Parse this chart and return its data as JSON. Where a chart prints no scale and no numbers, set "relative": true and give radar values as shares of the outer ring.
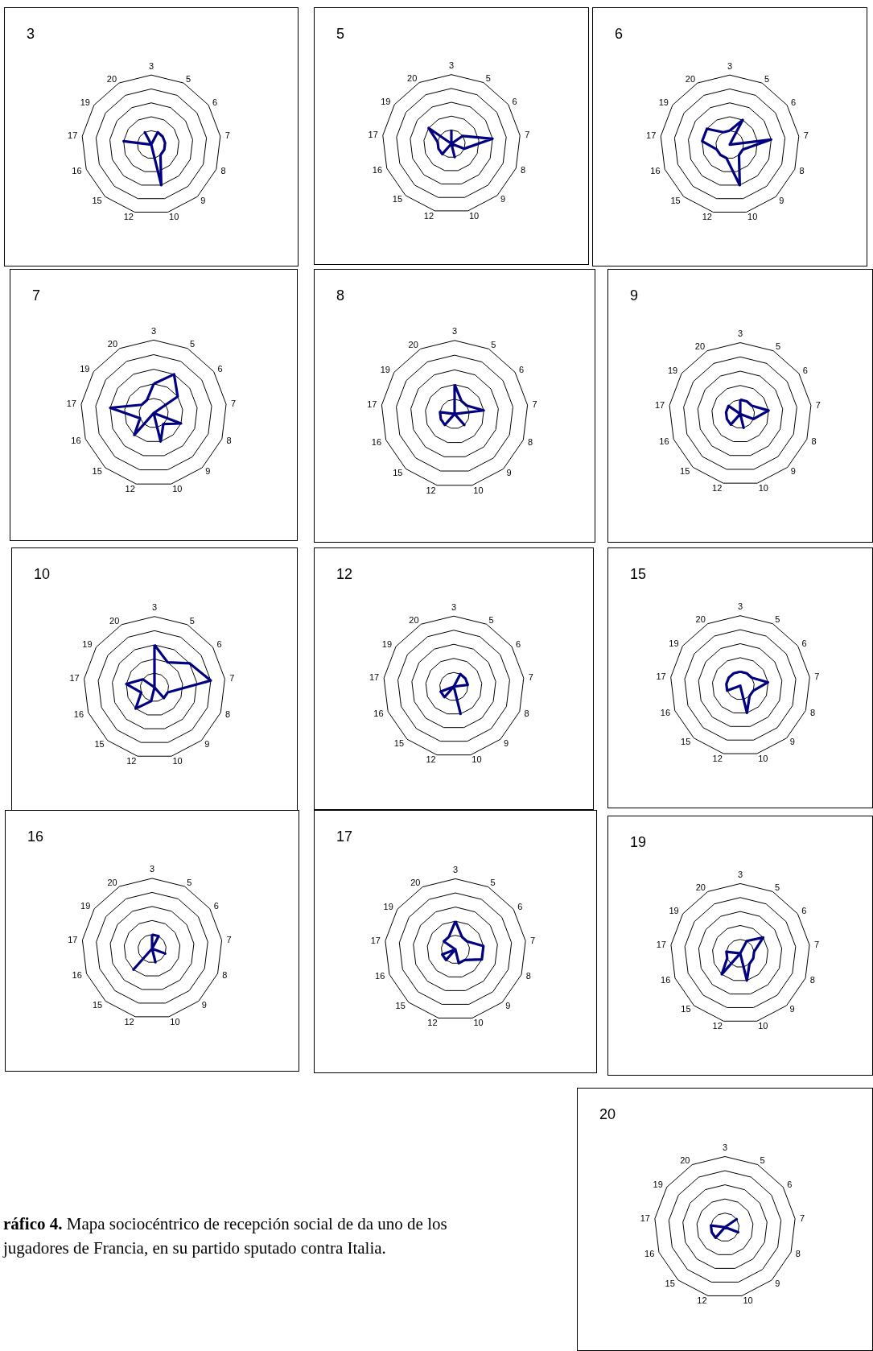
{
  "chart_data": [
    {
      "type": "radar",
      "title": "3",
      "relative": true,
      "categories": [
        "3",
        "5",
        "6",
        "7",
        "8",
        "9",
        "10",
        "12",
        "15",
        "16",
        "17",
        "19",
        "20"
      ],
      "series": [
        {
          "color": "#000080",
          "values": [
            0,
            0.2,
            0.2,
            0.2,
            0.2,
            0.2,
            0.6,
            0,
            0,
            0,
            0.4,
            0,
            0.2
          ]
        }
      ]
    },
    {
      "type": "radar",
      "title": "5",
      "relative": true,
      "categories": [
        "3",
        "5",
        "6",
        "7",
        "8",
        "9",
        "10",
        "12",
        "15",
        "16",
        "17",
        "19",
        "20"
      ],
      "series": [
        {
          "color": "#000080",
          "values": [
            0.2,
            0,
            0.2,
            0.6,
            0.2,
            0,
            0.2,
            0,
            0.2,
            0.2,
            0.2,
            0.4,
            0
          ]
        }
      ]
    },
    {
      "type": "radar",
      "title": "6",
      "relative": true,
      "categories": [
        "3",
        "5",
        "6",
        "7",
        "8",
        "9",
        "10",
        "12",
        "15",
        "16",
        "17",
        "19",
        "20"
      ],
      "series": [
        {
          "color": "#000080",
          "values": [
            0.2,
            0.4,
            0,
            0.6,
            0.2,
            0.2,
            0.6,
            0.2,
            0.2,
            0.2,
            0.4,
            0.4,
            0.2
          ]
        }
      ]
    },
    {
      "type": "radar",
      "title": "7",
      "relative": true,
      "categories": [
        "3",
        "5",
        "6",
        "7",
        "8",
        "9",
        "10",
        "12",
        "15",
        "16",
        "17",
        "19",
        "20"
      ],
      "series": [
        {
          "color": "#000080",
          "values": [
            0.4,
            0.6,
            0.4,
            0,
            0.4,
            0.2,
            0.4,
            0,
            0.4,
            0.2,
            0.6,
            0.2,
            0.2
          ]
        }
      ]
    },
    {
      "type": "radar",
      "title": "8",
      "relative": true,
      "categories": [
        "3",
        "5",
        "6",
        "7",
        "8",
        "9",
        "10",
        "12",
        "15",
        "16",
        "17",
        "19",
        "20"
      ],
      "series": [
        {
          "color": "#000080",
          "values": [
            0.4,
            0.2,
            0.2,
            0.4,
            0,
            0.2,
            0,
            0,
            0.2,
            0.2,
            0.2,
            0,
            0
          ]
        }
      ]
    },
    {
      "type": "radar",
      "title": "9",
      "relative": true,
      "categories": [
        "3",
        "5",
        "6",
        "7",
        "8",
        "9",
        "10",
        "12",
        "15",
        "16",
        "17",
        "19",
        "20"
      ],
      "series": [
        {
          "color": "#000080",
          "values": [
            0.2,
            0.2,
            0.2,
            0.4,
            0.2,
            0,
            0.2,
            0,
            0.2,
            0.2,
            0.2,
            0.2,
            0
          ]
        }
      ]
    },
    {
      "type": "radar",
      "title": "10",
      "relative": true,
      "categories": [
        "3",
        "5",
        "6",
        "7",
        "8",
        "9",
        "10",
        "12",
        "15",
        "16",
        "17",
        "19",
        "20"
      ],
      "series": [
        {
          "color": "#000080",
          "values": [
            0.6,
            0.4,
            0.6,
            0.8,
            0.2,
            0.2,
            0,
            0.2,
            0.4,
            0.2,
            0.4,
            0.2,
            0
          ]
        }
      ]
    },
    {
      "type": "radar",
      "title": "12",
      "relative": true,
      "categories": [
        "3",
        "5",
        "6",
        "7",
        "8",
        "9",
        "10",
        "12",
        "15",
        "16",
        "17",
        "19",
        "20"
      ],
      "series": [
        {
          "color": "#000080",
          "values": [
            0,
            0.2,
            0.2,
            0.2,
            0,
            0,
            0.4,
            0,
            0.2,
            0.2,
            0,
            0,
            0
          ]
        }
      ]
    },
    {
      "type": "radar",
      "title": "15",
      "relative": true,
      "categories": [
        "3",
        "5",
        "6",
        "7",
        "8",
        "9",
        "10",
        "12",
        "15",
        "16",
        "17",
        "19",
        "20"
      ],
      "series": [
        {
          "color": "#000080",
          "values": [
            0.2,
            0.2,
            0.2,
            0.4,
            0.2,
            0.2,
            0.4,
            0,
            0,
            0.2,
            0.2,
            0.2,
            0.2
          ]
        }
      ]
    },
    {
      "type": "radar",
      "title": "16",
      "relative": true,
      "categories": [
        "3",
        "5",
        "6",
        "7",
        "8",
        "9",
        "10",
        "12",
        "15",
        "16",
        "17",
        "19",
        "20"
      ],
      "series": [
        {
          "color": "#000080",
          "values": [
            0.2,
            0.2,
            0,
            0,
            0.2,
            0,
            0.2,
            0,
            0.4,
            0,
            0,
            0,
            0
          ]
        }
      ]
    },
    {
      "type": "radar",
      "title": "17",
      "relative": true,
      "categories": [
        "3",
        "5",
        "6",
        "7",
        "8",
        "9",
        "10",
        "12",
        "15",
        "16",
        "17",
        "19",
        "20"
      ],
      "series": [
        {
          "color": "#000080",
          "values": [
            0.4,
            0.2,
            0.2,
            0.4,
            0.4,
            0.2,
            0.2,
            0,
            0.2,
            0.2,
            0,
            0.2,
            0.2
          ]
        }
      ]
    },
    {
      "type": "radar",
      "title": "19",
      "relative": true,
      "categories": [
        "3",
        "5",
        "6",
        "7",
        "8",
        "9",
        "10",
        "12",
        "15",
        "16",
        "17",
        "19",
        "20"
      ],
      "series": [
        {
          "color": "#000080",
          "values": [
            0,
            0.2,
            0.4,
            0.2,
            0.2,
            0.2,
            0.4,
            0,
            0.4,
            0.2,
            0.2,
            0,
            0
          ]
        }
      ]
    },
    {
      "type": "radar",
      "title": "20",
      "relative": true,
      "categories": [
        "3",
        "5",
        "6",
        "7",
        "8",
        "9",
        "10",
        "12",
        "15",
        "16",
        "17",
        "19",
        "20"
      ],
      "series": [
        {
          "color": "#000080",
          "values": [
            0,
            0,
            0.2,
            0,
            0.2,
            0,
            0,
            0,
            0.2,
            0.2,
            0.2,
            0,
            0
          ]
        }
      ],
      "annotations": [
        "ráfico 4.",
        "Mapa sociocéntrico de recepción social de da uno de los jugadores de Francia, en su partido sputado contra Italia."
      ]
    }
  ]
}
